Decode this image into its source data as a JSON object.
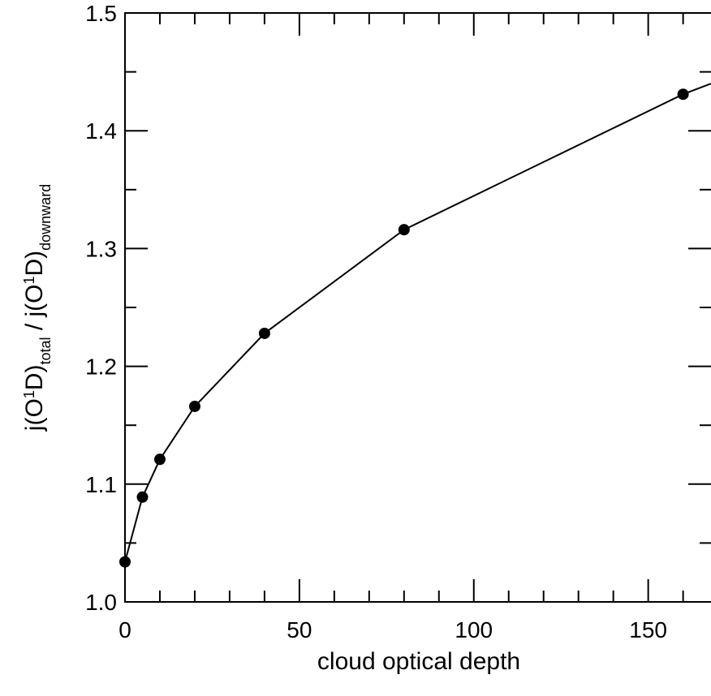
{
  "chart_data": {
    "type": "line",
    "title": "",
    "xlabel": "cloud optical depth",
    "ylabel": {
      "p1": "j(O",
      "sup1": "1",
      "p2": "D)",
      "sub1": "total",
      "p3": " / j(O",
      "sup2": "1",
      "p4": "D)",
      "sub2": "downward"
    },
    "xlim": [
      0,
      168
    ],
    "ylim": [
      1.0,
      1.5
    ],
    "x_ticks": [
      {
        "value": 0,
        "label": "0"
      },
      {
        "value": 50,
        "label": "50"
      },
      {
        "value": 100,
        "label": "100"
      },
      {
        "value": 150,
        "label": "150"
      }
    ],
    "x_minor_step": 10,
    "y_ticks": [
      {
        "value": 1.0,
        "label": "1.0"
      },
      {
        "value": 1.1,
        "label": "1.1"
      },
      {
        "value": 1.2,
        "label": "1.2"
      },
      {
        "value": 1.3,
        "label": "1.3"
      },
      {
        "value": 1.4,
        "label": "1.4"
      },
      {
        "value": 1.5,
        "label": "1.5"
      }
    ],
    "y_minor_step": 0.05,
    "grid": false,
    "series": [
      {
        "markers": true,
        "color": "#000000",
        "x": [
          0,
          5,
          10,
          20,
          40,
          80,
          160
        ],
        "y": [
          1.034,
          1.089,
          1.121,
          1.166,
          1.228,
          1.316,
          1.431
        ]
      }
    ],
    "line_extends_to": {
      "x": 168,
      "y": 1.44
    }
  }
}
